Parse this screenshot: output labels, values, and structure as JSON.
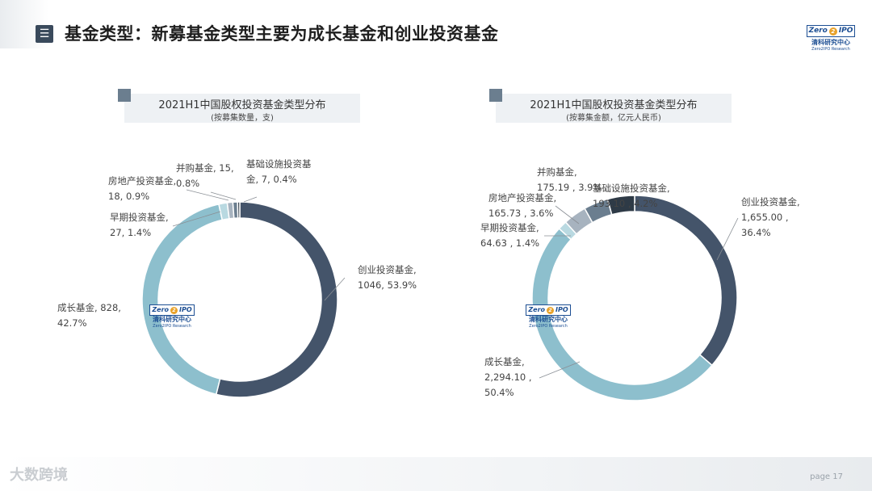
{
  "header": {
    "title": "基金类型：新募基金类型主要为成长基金和创业投资基金",
    "menu_icon": "list-icon",
    "menu_glyph": "☰",
    "logo": {
      "mark_left": "Zero",
      "mark_mid": "2",
      "mark_right": "IPO",
      "cn": "清科研究中心",
      "en": "Zero2IPO Research"
    }
  },
  "footer": {
    "page_label": "page  17",
    "source_mark": "大数跨境"
  },
  "colors": {
    "vc": "#44546a",
    "growth": "#8dbfcd",
    "early": "#b9d9e1",
    "real_estate": "#a7b3bf",
    "mna": "#6b7e8f",
    "infra": "#2e3a46"
  },
  "chart_data": [
    {
      "type": "pie",
      "title": "2021H1中国股权投资基金类型分布",
      "subtitle": "(按募集数量，支)",
      "slices": [
        {
          "key": "vc",
          "value": 1046,
          "percent": 53.9,
          "label_lines": [
            "创业投资基金,",
            "1046, 53.9%"
          ]
        },
        {
          "key": "growth",
          "value": 828,
          "percent": 42.7,
          "label_lines": [
            "成长基金, 828,",
            "42.7%"
          ]
        },
        {
          "key": "early",
          "value": 27,
          "percent": 1.4,
          "label_lines": [
            "早期投资基金,",
            "27, 1.4%"
          ]
        },
        {
          "key": "real_estate",
          "value": 18,
          "percent": 0.9,
          "label_lines": [
            "房地产投资基金,",
            "18, 0.9%"
          ]
        },
        {
          "key": "mna",
          "value": 15,
          "percent": 0.8,
          "label_lines": [
            "并购基金, 15,",
            "0.8%"
          ]
        },
        {
          "key": "infra",
          "value": 7,
          "percent": 0.4,
          "label_lines": [
            "基础设施投资基",
            "金, 7, 0.4%"
          ]
        }
      ]
    },
    {
      "type": "pie",
      "title": "2021H1中国股权投资基金类型分布",
      "subtitle": "(按募集金额，亿元人民币)",
      "slices": [
        {
          "key": "vc",
          "value": 1655.0,
          "percent": 36.4,
          "label_lines": [
            "创业投资基金,",
            "1,655.00 ,",
            "36.4%"
          ]
        },
        {
          "key": "growth",
          "value": 2294.1,
          "percent": 50.4,
          "label_lines": [
            "成长基金,",
            "2,294.10 ,",
            "50.4%"
          ]
        },
        {
          "key": "early",
          "value": 64.63,
          "percent": 1.4,
          "label_lines": [
            "早期投资基金,",
            "64.63 , 1.4%"
          ]
        },
        {
          "key": "real_estate",
          "value": 165.73,
          "percent": 3.6,
          "label_lines": [
            "房地产投资基金,",
            "165.73 , 3.6%"
          ]
        },
        {
          "key": "mna",
          "value": 175.19,
          "percent": 3.9,
          "label_lines": [
            "并购基金,",
            "175.19 , 3.9%"
          ]
        },
        {
          "key": "infra",
          "value": 193.1,
          "percent": 4.2,
          "label_lines": [
            "基础设施投资基金,",
            "193.10 , 4.2%"
          ]
        }
      ]
    }
  ]
}
